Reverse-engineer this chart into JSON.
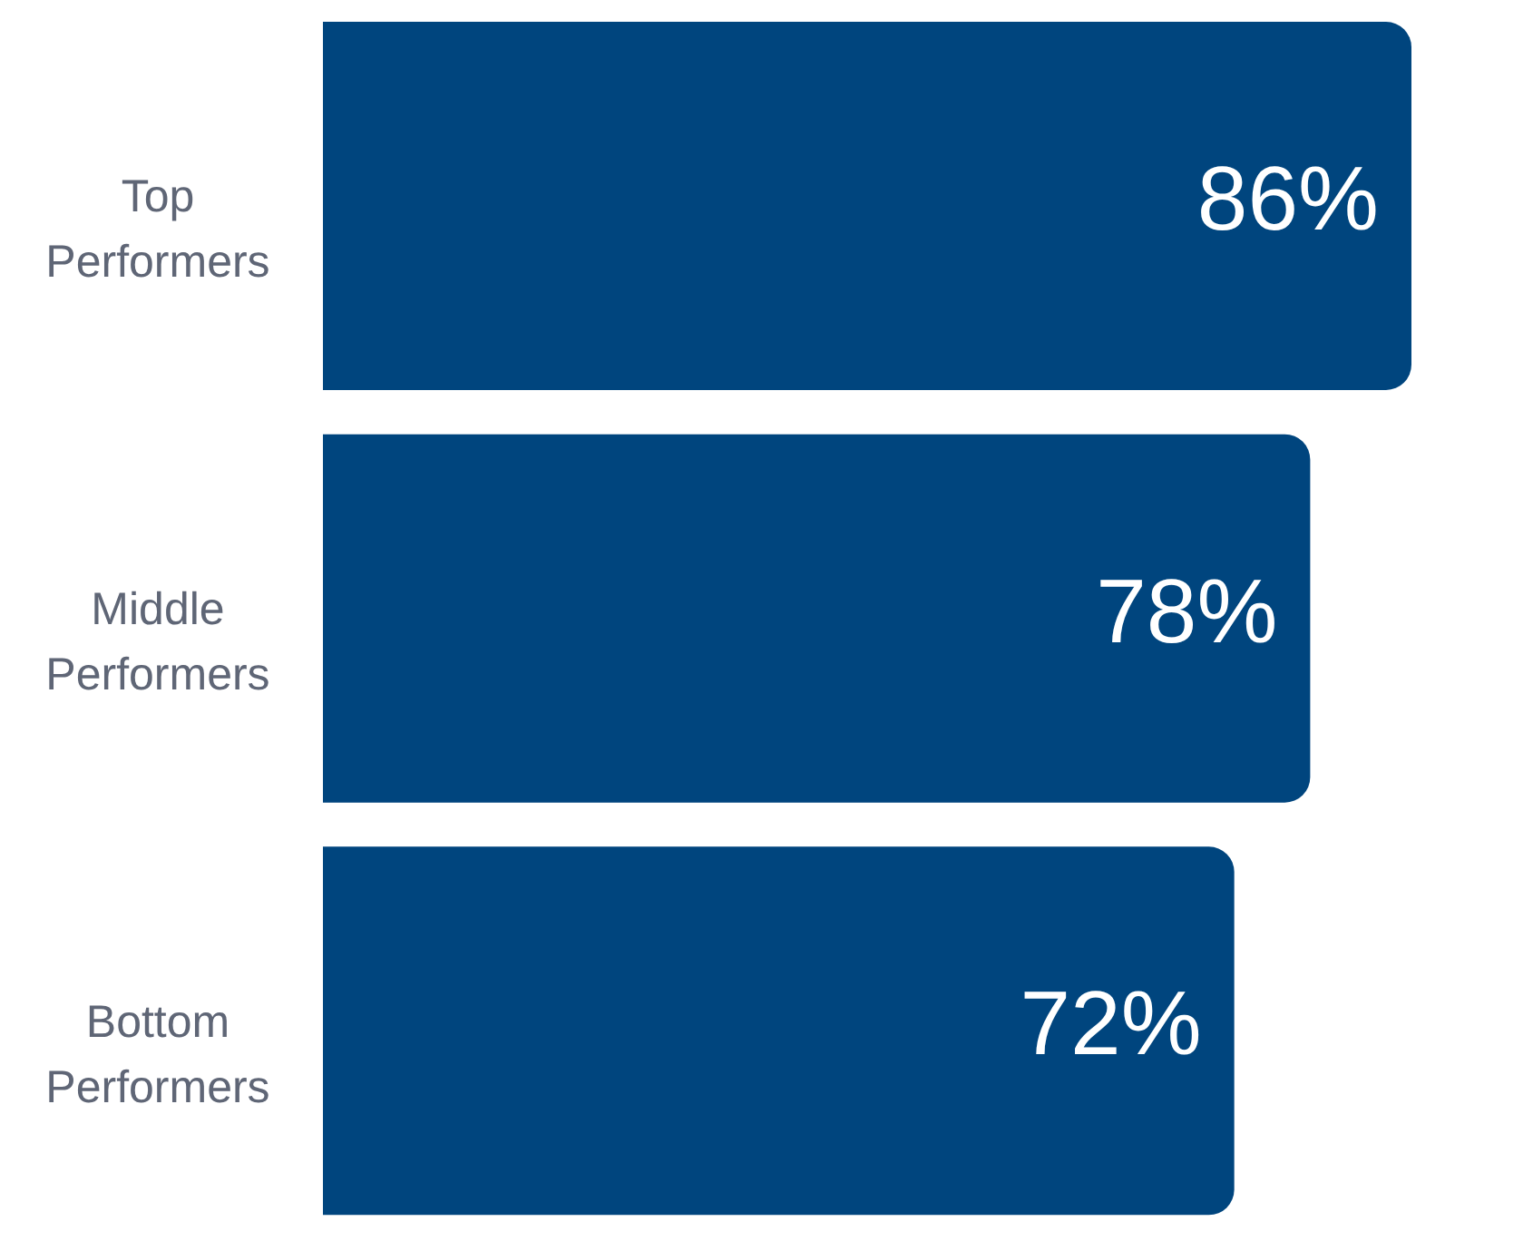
{
  "chart_data": {
    "type": "bar",
    "orientation": "horizontal",
    "categories": [
      "Top Performers",
      "Middle Performers",
      "Bottom Performers"
    ],
    "values": [
      86,
      78,
      72
    ],
    "color": "#00457e",
    "value_labels": [
      "86%",
      "78%",
      "72%"
    ],
    "tick_labels": "y",
    "grid": false,
    "legend": false
  }
}
